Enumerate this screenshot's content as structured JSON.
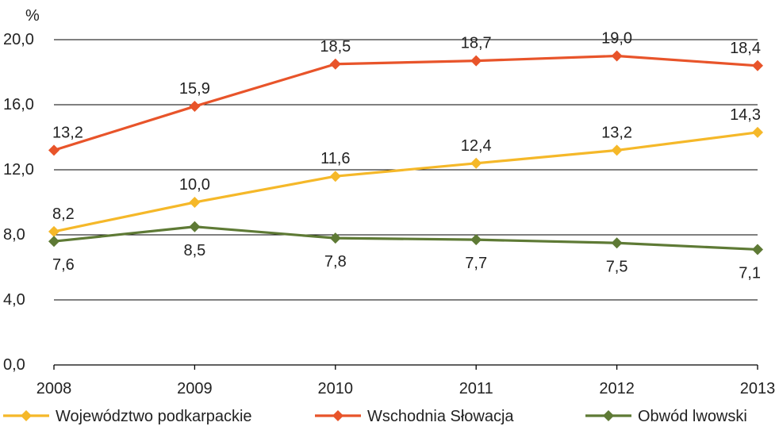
{
  "chart_data": {
    "type": "line",
    "title": "",
    "xlabel": "",
    "ylabel": "%",
    "ylim": [
      0,
      20
    ],
    "yticks": [
      "0,0",
      "4,0",
      "8,0",
      "12,0",
      "16,0",
      "20,0"
    ],
    "x": [
      "2008",
      "2009",
      "2010",
      "2011",
      "2012",
      "2013"
    ],
    "grid": true,
    "legend_position": "bottom",
    "series": [
      {
        "name": "Województwo podkarpackie",
        "color": "#F5B829",
        "values": [
          8.2,
          10.0,
          11.6,
          12.4,
          13.2,
          14.3
        ],
        "labels": [
          "8,2",
          "10,0",
          "11,6",
          "12,4",
          "13,2",
          "14,3"
        ],
        "label_position": "above"
      },
      {
        "name": "Wschodnia Słowacja",
        "color": "#E8542A",
        "values": [
          13.2,
          15.9,
          18.5,
          18.7,
          19.0,
          18.4
        ],
        "labels": [
          "13,2",
          "15,9",
          "18,5",
          "18,7",
          "19,0",
          "18,4"
        ],
        "label_position": "above"
      },
      {
        "name": "Obwód lwowski",
        "color": "#5E7A35",
        "values": [
          7.6,
          8.5,
          7.8,
          7.7,
          7.5,
          7.1
        ],
        "labels": [
          "7,6",
          "8,5",
          "7,8",
          "7,7",
          "7,5",
          "7,1"
        ],
        "label_position": "below"
      }
    ]
  }
}
